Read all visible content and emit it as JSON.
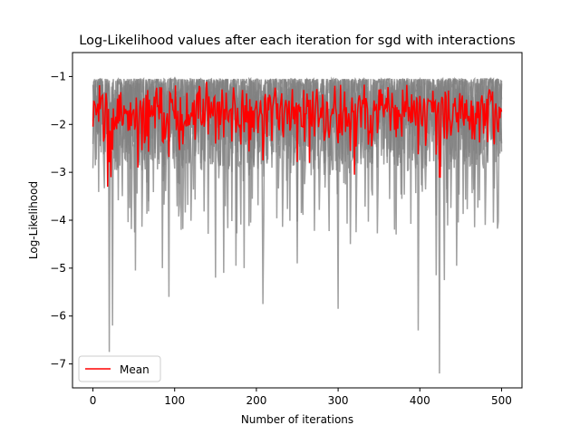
{
  "chart_data": {
    "type": "line",
    "title": "Log-Likelihood values after each iteration for sgd with interactions",
    "xlabel": "Number of iterations",
    "ylabel": "Log-Likelihood",
    "xlim": [
      -25,
      525
    ],
    "ylim": [
      -7.5,
      -0.5
    ],
    "x_ticks": [
      0,
      100,
      200,
      300,
      400,
      500
    ],
    "y_ticks": [
      -1,
      -2,
      -3,
      -4,
      -5,
      -6,
      -7
    ],
    "x_tick_labels": [
      "0",
      "100",
      "200",
      "300",
      "400",
      "500"
    ],
    "y_tick_labels": [
      "−1",
      "−2",
      "−3",
      "−4",
      "−5",
      "−6",
      "−7"
    ],
    "grid": false,
    "legend": {
      "placement": "lower-left",
      "entries": [
        "Mean"
      ]
    },
    "series_colors": {
      "runs": "#808080",
      "mean": "#ff0000"
    },
    "iterations": 500,
    "series": [
      {
        "name": "Mean",
        "approx_mean": -1.65,
        "typical_range": [
          -2.6,
          -1.0
        ],
        "notable_dips": [
          {
            "x": 18,
            "y": -3.3
          },
          {
            "x": 22,
            "y": -3.1
          },
          {
            "x": 55,
            "y": -2.9
          },
          {
            "x": 265,
            "y": -2.8
          },
          {
            "x": 320,
            "y": -3.05
          },
          {
            "x": 425,
            "y": -3.1
          }
        ]
      }
    ],
    "runs": {
      "count": 5,
      "typical_range": [
        -3.0,
        -0.85
      ],
      "notable_dips": [
        {
          "x": 20,
          "y": -6.75
        },
        {
          "x": 24,
          "y": -6.2
        },
        {
          "x": 52,
          "y": -5.05
        },
        {
          "x": 85,
          "y": -5.0
        },
        {
          "x": 93,
          "y": -5.6
        },
        {
          "x": 150,
          "y": -5.2
        },
        {
          "x": 160,
          "y": -5.1
        },
        {
          "x": 175,
          "y": -4.95
        },
        {
          "x": 185,
          "y": -5.0
        },
        {
          "x": 208,
          "y": -5.75
        },
        {
          "x": 250,
          "y": -4.9
        },
        {
          "x": 300,
          "y": -5.85
        },
        {
          "x": 315,
          "y": -4.5
        },
        {
          "x": 398,
          "y": -6.3
        },
        {
          "x": 420,
          "y": -5.15
        },
        {
          "x": 424,
          "y": -7.2
        },
        {
          "x": 430,
          "y": -5.25
        },
        {
          "x": 445,
          "y": -4.95
        },
        {
          "x": 480,
          "y": -4.1
        }
      ]
    }
  }
}
